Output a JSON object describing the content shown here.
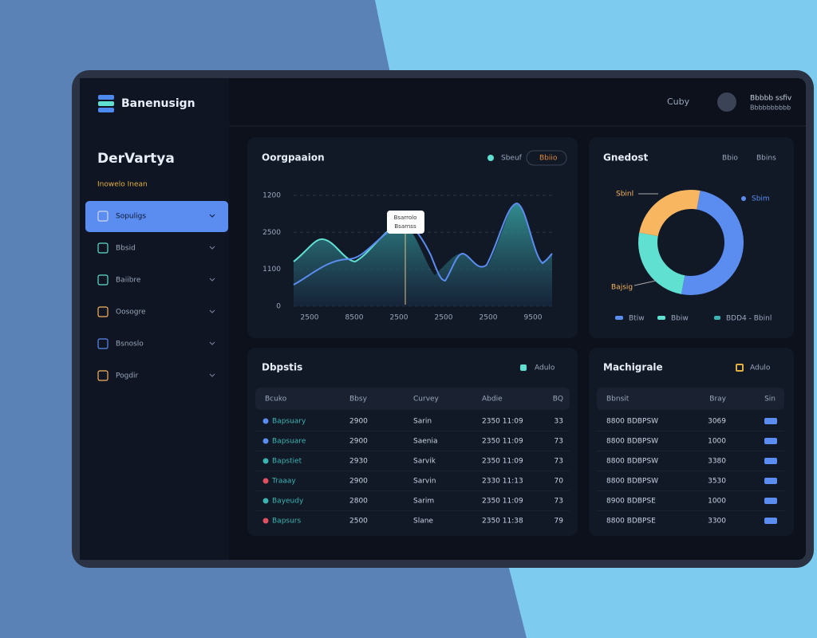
{
  "brand": "Banenusign",
  "header": {
    "search": "Cuby",
    "user_name": "Bbbbb ssfiv",
    "user_sub": "Bbbbbbbbbb"
  },
  "sidebar": {
    "title": "DerVartya",
    "subtitle": "Inowelo Inean",
    "items": [
      "Sopuligs",
      "Bbsid",
      "Baiibre",
      "Oosogre",
      "Bsnoslo",
      "Pogdir"
    ]
  },
  "line_card": {
    "title": "Oorgpaaion",
    "legend": [
      "Sbeuf",
      "Bbiio"
    ],
    "tooltip": [
      "Bsarrolo",
      "Bsarnss"
    ],
    "y_labels": [
      "1200",
      "2500",
      "1100",
      "0"
    ],
    "x_labels": [
      "2500",
      "8500",
      "2500",
      "2500",
      "2500",
      "9500"
    ]
  },
  "donut_card": {
    "title": "Gnedost",
    "actions": [
      "Bbio",
      "Bbins"
    ],
    "labels": [
      "Sbinl",
      "Sbim",
      "Bajsig"
    ],
    "legend": [
      "Btiw",
      "Bbiw",
      "BDD4 - Bbinl"
    ]
  },
  "orders": {
    "title": "Dbpstis",
    "legend": "Adulo",
    "headers": [
      "Bcuko",
      "Bbsy",
      "Curvey",
      "Abdie",
      "BQ"
    ],
    "rows": [
      [
        "Bapsuary",
        "2900",
        "Sarin",
        "2350 11:09",
        "33"
      ],
      [
        "Bapsuare",
        "2900",
        "Saenia",
        "2350 11:09",
        "73"
      ],
      [
        "Bapstiet",
        "2930",
        "Sarvik",
        "2350 11:09",
        "73"
      ],
      [
        "Traaay",
        "2900",
        "Sarvin",
        "2330 11:13",
        "70"
      ],
      [
        "Bayeudy",
        "2800",
        "Sarim",
        "2350 11:09",
        "73"
      ],
      [
        "Bapsurs",
        "2500",
        "Slane",
        "2350 11:38",
        "79"
      ]
    ]
  },
  "machines": {
    "title": "Machigrale",
    "legend": "Adulo",
    "headers": [
      "Bbnsit",
      "Bray",
      "Sin"
    ],
    "rows": [
      [
        "8800 BDBPSW",
        "3069"
      ],
      [
        "8800 BDBPSW",
        "1000"
      ],
      [
        "8800 BDBPSW",
        "3380"
      ],
      [
        "8800 BDBPSW",
        "3530"
      ],
      [
        "8900 BDBPSE",
        "1000"
      ],
      [
        "8800 BDBPSE",
        "3300"
      ]
    ]
  }
}
